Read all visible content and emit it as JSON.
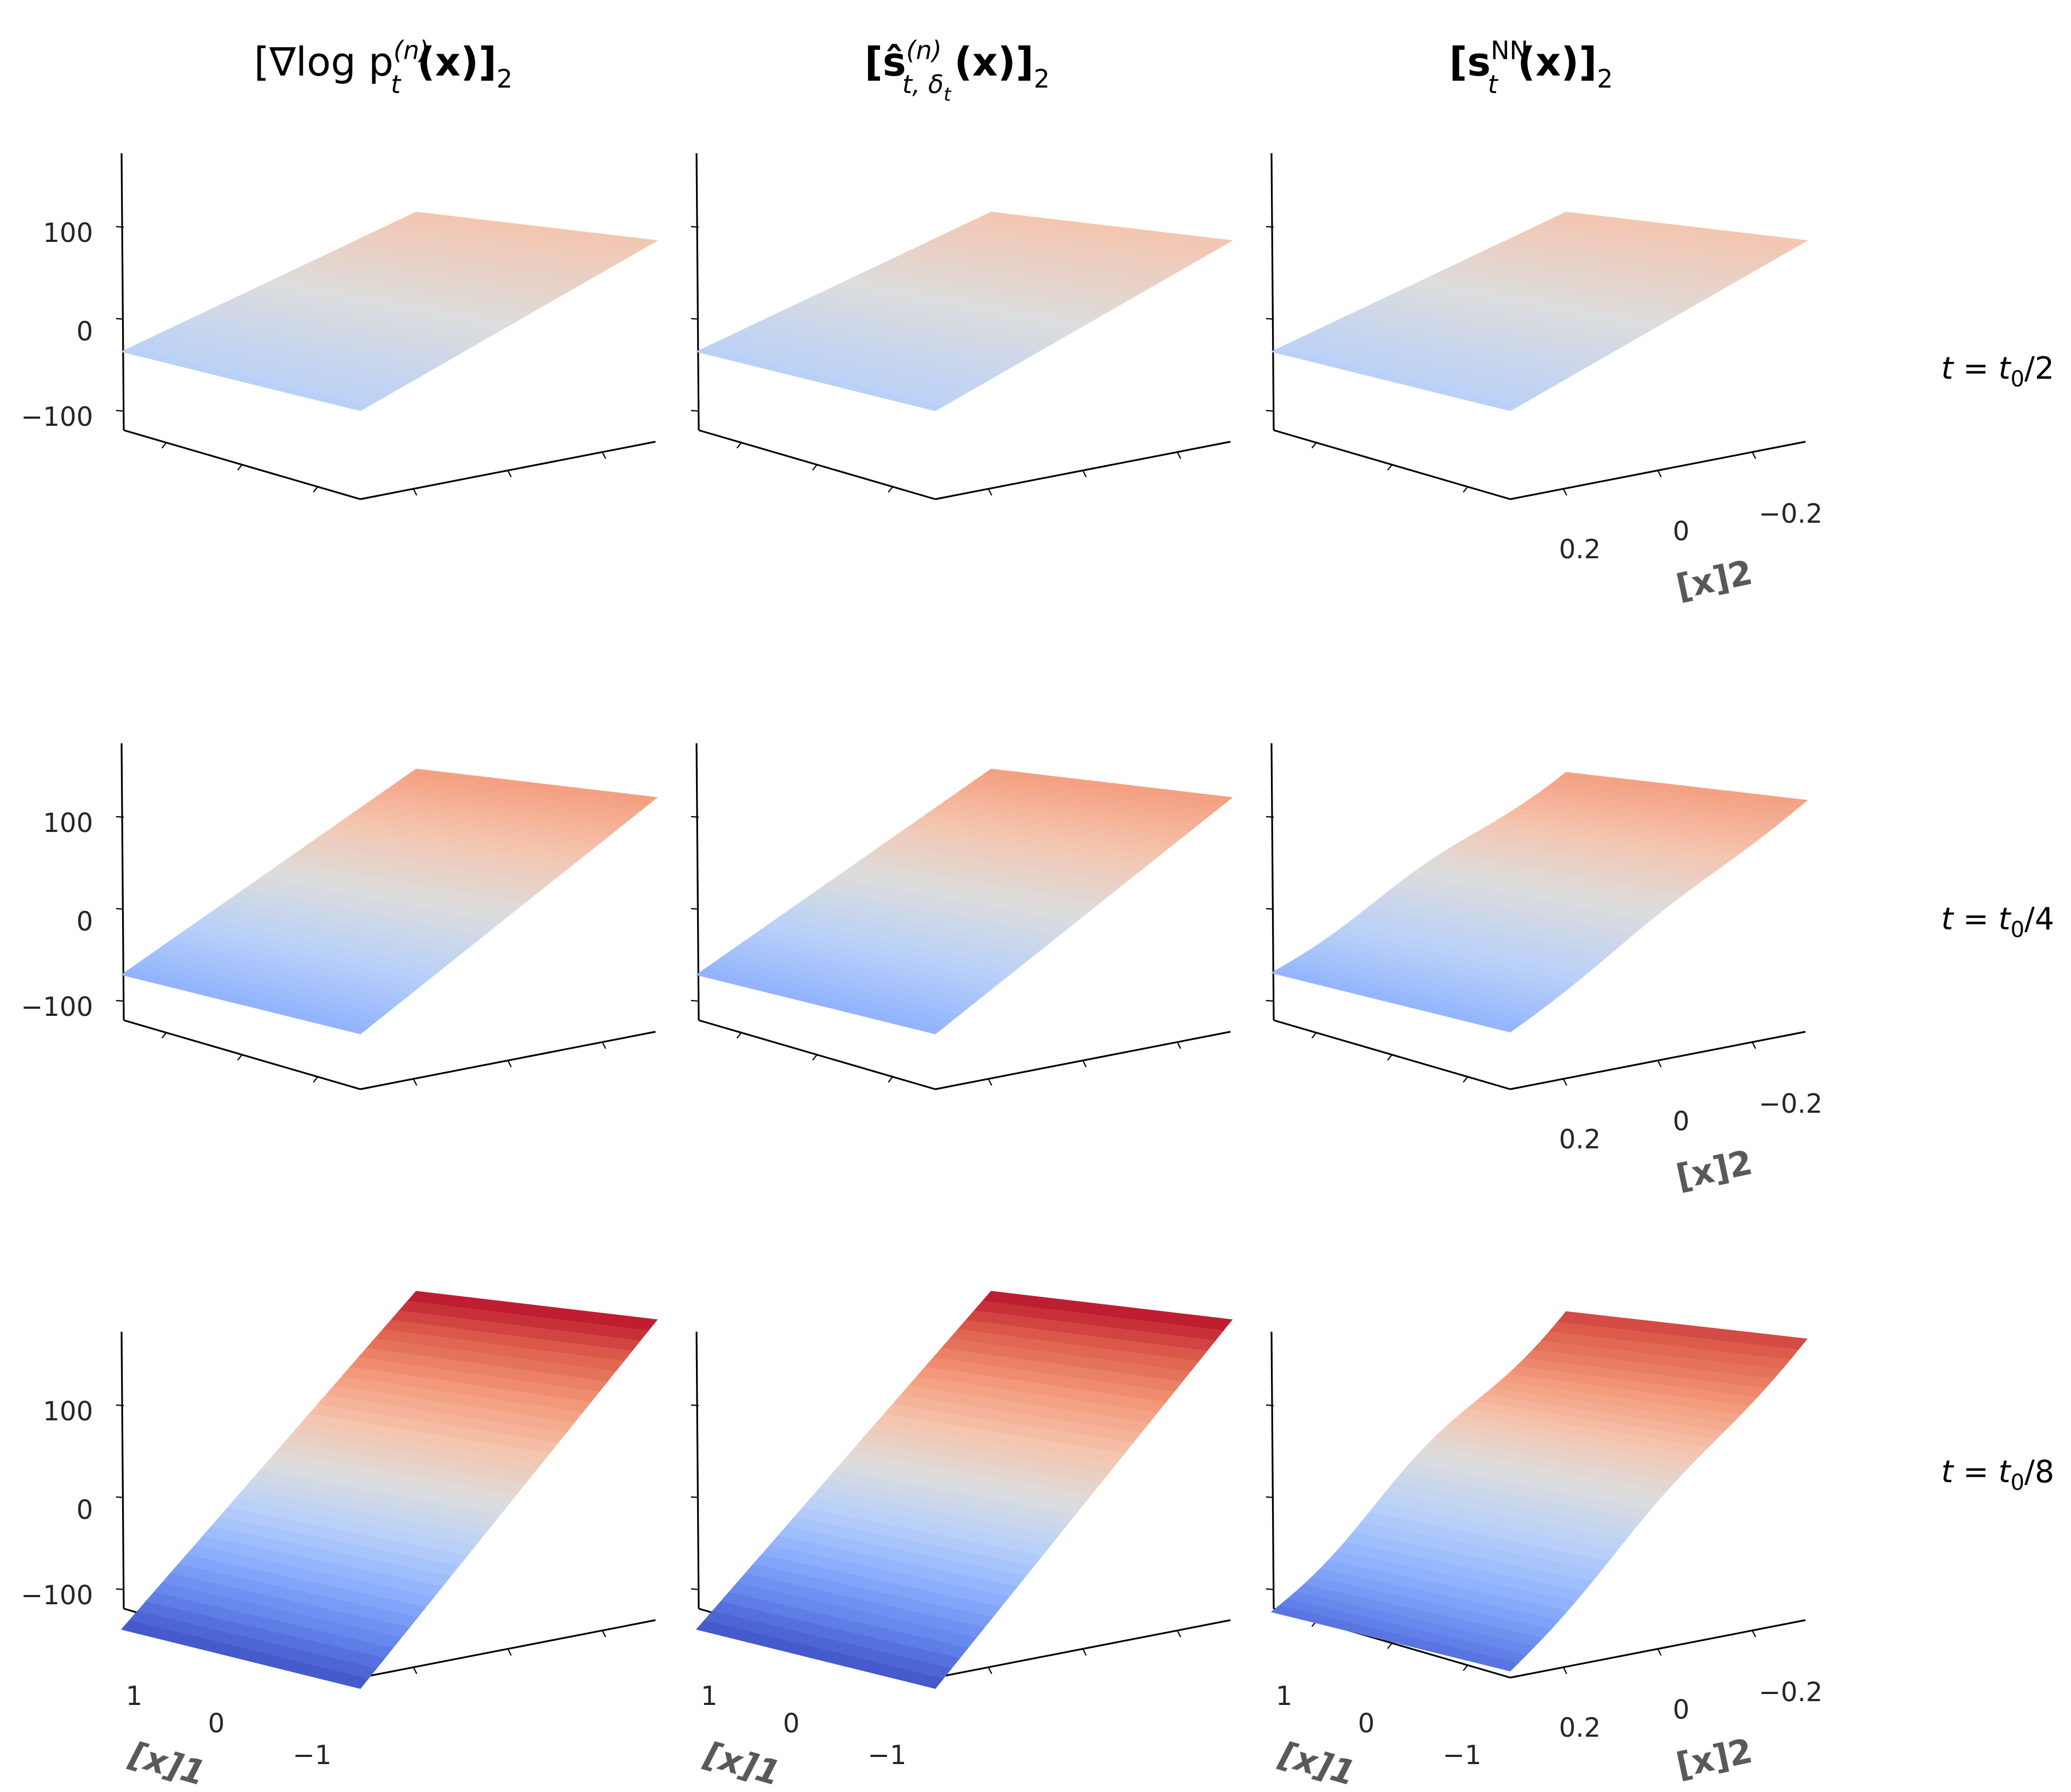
{
  "chart_data": [
    {
      "type": "surface",
      "row": 0,
      "col": 0,
      "title": "[∇log p_t^(n)(x)]_2",
      "row_label": "t = t0/2",
      "zlim": [
        -150,
        150
      ],
      "zticks": [
        100,
        0,
        -100
      ],
      "z_range": [
        -36,
        36
      ],
      "jagged": false
    },
    {
      "type": "surface",
      "row": 0,
      "col": 1,
      "title": "[ŝ_{t,δt}^(n)(x)]_2",
      "row_label": "t = t0/2",
      "zlim": [
        -150,
        150
      ],
      "zticks": [],
      "z_range": [
        -36,
        36
      ],
      "jagged": false
    },
    {
      "type": "surface",
      "row": 0,
      "col": 2,
      "title": "[s_t^NN(x)]_2",
      "row_label": "t = t0/2",
      "zlim": [
        -150,
        150
      ],
      "zticks": [],
      "z_range": [
        -36,
        36
      ],
      "jagged": false
    },
    {
      "type": "surface",
      "row": 1,
      "col": 0,
      "row_label": "t = t0/4",
      "zlim": [
        -150,
        150
      ],
      "zticks": [
        100,
        0,
        -100
      ],
      "z_range": [
        -72,
        72
      ],
      "jagged": false
    },
    {
      "type": "surface",
      "row": 1,
      "col": 1,
      "row_label": "t = t0/4",
      "zlim": [
        -150,
        150
      ],
      "zticks": [],
      "z_range": [
        -72,
        72
      ],
      "jagged": false
    },
    {
      "type": "surface",
      "row": 1,
      "col": 2,
      "row_label": "t = t0/4",
      "zlim": [
        -150,
        150
      ],
      "zticks": [],
      "z_range": [
        -70,
        70
      ],
      "jagged": true
    },
    {
      "type": "surface",
      "row": 2,
      "col": 0,
      "row_label": "t = t0/8",
      "zlim": [
        -150,
        150
      ],
      "zticks": [
        100,
        0,
        -100
      ],
      "z_range": [
        -144,
        144
      ],
      "jagged": false
    },
    {
      "type": "surface",
      "row": 2,
      "col": 1,
      "row_label": "t = t0/8",
      "zlim": [
        -150,
        150
      ],
      "zticks": [],
      "z_range": [
        -144,
        144
      ],
      "jagged": false
    },
    {
      "type": "surface",
      "row": 2,
      "col": 2,
      "row_label": "t = t0/8",
      "zlim": [
        -150,
        150
      ],
      "zticks": [],
      "z_range": [
        -125,
        125
      ],
      "jagged": true
    }
  ],
  "axes": {
    "z_tick_labels": [
      "100",
      "0",
      "−100"
    ],
    "x1_tick_labels": [
      "1",
      "0",
      "−1"
    ],
    "x1_label": "[x]1",
    "x2_tick_labels": [
      "0.2",
      "0",
      "−0.2"
    ],
    "x2_label": "[x]2",
    "x1_range": [
      1,
      -1
    ],
    "x2_range": [
      0.2,
      -0.2
    ]
  },
  "titles": {
    "col0_main": "[∇log p",
    "col0_sup": "(n)",
    "col0_sub": "t",
    "col0_tail": "(x)]",
    "col0_tail_sub": "2",
    "col1_main": "[ŝ",
    "col1_sup": "(n)",
    "col1_sub": "t, δ",
    "col1_subsub": "t",
    "col1_tail": "(x)]",
    "col1_tail_sub": "2",
    "col2_main": "[s",
    "col2_sup": "NN",
    "col2_sub": "t",
    "col2_tail": "(x)]",
    "col2_tail_sub": "2"
  },
  "row_labels": [
    {
      "t": "t",
      "eq": " = ",
      "t0": "t",
      "t0_sub": "0",
      "div": "/2"
    },
    {
      "t": "t",
      "eq": " = ",
      "t0": "t",
      "t0_sub": "0",
      "div": "/4"
    },
    {
      "t": "t",
      "eq": " = ",
      "t0": "t",
      "t0_sub": "0",
      "div": "/8"
    }
  ],
  "colormap": {
    "name": "coolwarm",
    "low": "#3b4cc0",
    "mid": "#dddddd",
    "high": "#b40426"
  }
}
